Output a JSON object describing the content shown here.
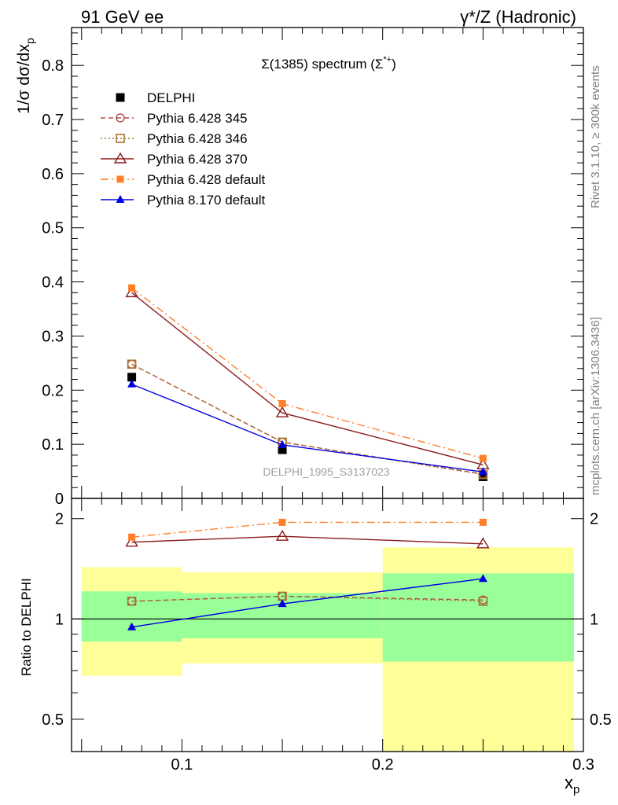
{
  "header": {
    "left": "91 GeV ee",
    "right": "γ*/Z (Hadronic)"
  },
  "side_text": {
    "rivet": "Rivet 3.1.10, ≥ 300k events",
    "mcplots": "mcplots.cern.ch [arXiv:1306.3436]"
  },
  "watermark": "DELPHI_1995_S3137023",
  "colors": {
    "data": "#000000",
    "p345": "#b24c4c",
    "p346": "#a6782e",
    "p370": "#8b1a1a",
    "p6def": "#ff7f2a",
    "p8def": "#0000e0",
    "band_inner": "#99ff99",
    "band_outer": "#ffff99"
  },
  "chart_data": [
    {
      "type": "line",
      "title": "Σ(1385) spectrum (Σ*+)",
      "title_parts": {
        "main": "Σ(1385) spectrum (",
        "sym": "Σ",
        "sup": "*+",
        "close": ")"
      },
      "xlabel": "x_p",
      "ylabel": "1/σ dσ/dx_p",
      "xlim": [
        0.045,
        0.3
      ],
      "ylim": [
        0,
        0.87
      ],
      "yticks": [
        "0",
        "0.1",
        "0.2",
        "0.3",
        "0.4",
        "0.5",
        "0.6",
        "0.7",
        "0.8"
      ],
      "yticks_values": [
        0,
        0.1,
        0.2,
        0.3,
        0.4,
        0.5,
        0.6,
        0.7,
        0.8
      ],
      "legend_position": "top-left",
      "x": [
        0.075,
        0.15,
        0.25
      ],
      "series": [
        {
          "name": "DELPHI",
          "key": "data",
          "marker": "square-filled",
          "line": "none",
          "values": [
            0.224,
            0.09,
            0.04
          ]
        },
        {
          "name": "Pythia 6.428 345",
          "key": "p345",
          "marker": "circle-open",
          "line": "dashed",
          "values": [
            0.248,
            0.104,
            0.045
          ]
        },
        {
          "name": "Pythia 6.428 346",
          "key": "p346",
          "marker": "square-open",
          "line": "dotted",
          "values": [
            0.248,
            0.104,
            0.044
          ]
        },
        {
          "name": "Pythia 6.428 370",
          "key": "p370",
          "marker": "triangle-open",
          "line": "solid",
          "values": [
            0.38,
            0.158,
            0.062
          ]
        },
        {
          "name": "Pythia 6.428 default",
          "key": "p6def",
          "marker": "square-filled-small",
          "line": "dashdot",
          "values": [
            0.389,
            0.175,
            0.074
          ]
        },
        {
          "name": "Pythia 8.170 default",
          "key": "p8def",
          "marker": "triangle-filled",
          "line": "solid",
          "values": [
            0.211,
            0.099,
            0.049
          ]
        }
      ]
    },
    {
      "type": "line",
      "title": "",
      "xlabel": "x_p",
      "ylabel": "Ratio to DELPHI",
      "xlim": [
        0.045,
        0.3
      ],
      "ylim": [
        0.4,
        2.3
      ],
      "xticks": [
        "0.1",
        "0.2",
        "0.3"
      ],
      "xticks_values": [
        0.1,
        0.2,
        0.3
      ],
      "yticks": [
        "0.5",
        "1",
        "2"
      ],
      "yticks_values": [
        0.5,
        1,
        2
      ],
      "scale_y": "log",
      "reference_line": 1,
      "bands": [
        {
          "x0": 0.05,
          "x1": 0.1,
          "inner": [
            0.855,
            1.21
          ],
          "outer": [
            0.675,
            1.43
          ]
        },
        {
          "x0": 0.1,
          "x1": 0.2,
          "inner": [
            0.875,
            1.195
          ],
          "outer": [
            0.735,
            1.38
          ]
        },
        {
          "x0": 0.2,
          "x1": 0.3,
          "inner": [
            0.745,
            1.37
          ],
          "outer": [
            0.37,
            1.64
          ]
        }
      ],
      "x": [
        0.075,
        0.15,
        0.25
      ],
      "series": [
        {
          "name": "Pythia 6.428 345",
          "key": "p345",
          "values": [
            1.13,
            1.17,
            1.14
          ]
        },
        {
          "name": "Pythia 6.428 346",
          "key": "p346",
          "values": [
            1.13,
            1.17,
            1.13
          ]
        },
        {
          "name": "Pythia 6.428 370",
          "key": "p370",
          "values": [
            1.7,
            1.77,
            1.68
          ]
        },
        {
          "name": "Pythia 6.428 default",
          "key": "p6def",
          "values": [
            1.76,
            1.95,
            1.95
          ]
        },
        {
          "name": "Pythia 8.170 default",
          "key": "p8def",
          "values": [
            0.945,
            1.11,
            1.32
          ]
        }
      ]
    }
  ]
}
